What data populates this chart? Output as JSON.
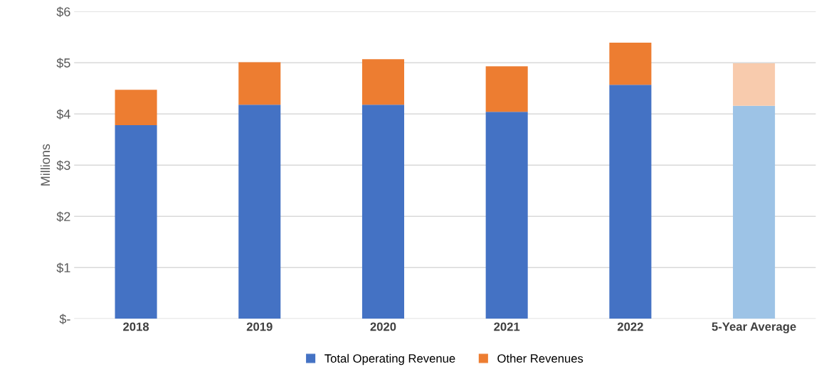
{
  "chart_data": {
    "type": "bar",
    "stacked": true,
    "ylabel": "Millions",
    "categories": [
      "2018",
      "2019",
      "2020",
      "2021",
      "2022",
      "5-Year Average"
    ],
    "series": [
      {
        "name": "Total Operating Revenue",
        "color": "#4472c4",
        "colors": [
          "#4472c4",
          "#4472c4",
          "#4472c4",
          "#4472c4",
          "#4472c4",
          "#9dc3e6"
        ],
        "values": [
          3.78,
          4.18,
          4.18,
          4.04,
          4.57,
          4.16
        ]
      },
      {
        "name": "Other Revenues",
        "color": "#ed7d31",
        "colors": [
          "#ed7d31",
          "#ed7d31",
          "#ed7d31",
          "#ed7d31",
          "#ed7d31",
          "#f8cbad"
        ],
        "values": [
          0.69,
          0.83,
          0.89,
          0.89,
          0.82,
          0.83
        ]
      }
    ],
    "ylim": [
      0,
      6
    ],
    "yticks": [
      {
        "value": 0,
        "label": "$-"
      },
      {
        "value": 1,
        "label": "$1"
      },
      {
        "value": 2,
        "label": "$2"
      },
      {
        "value": 3,
        "label": "$3"
      },
      {
        "value": 4,
        "label": "$4"
      },
      {
        "value": 5,
        "label": "$5"
      },
      {
        "value": 6,
        "label": "$6"
      }
    ],
    "grid": "y",
    "legend": "bottom"
  }
}
